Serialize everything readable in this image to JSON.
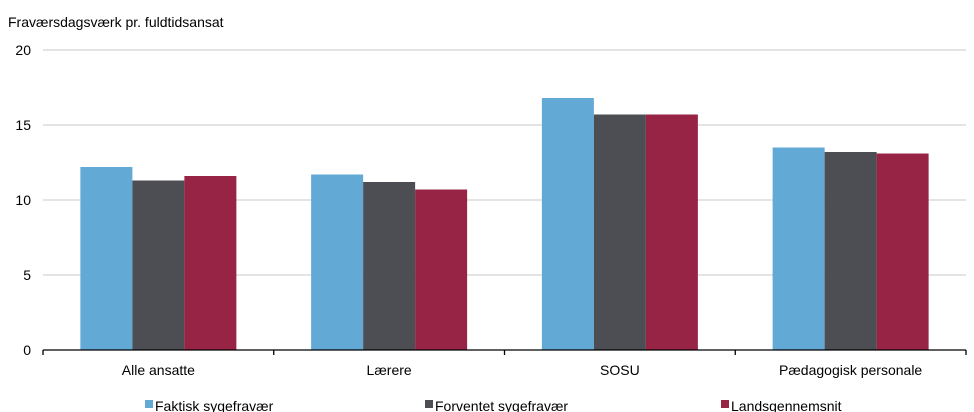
{
  "chart_data": {
    "type": "bar",
    "ylabel": "Fraværsdagsværk pr. fuldtidsansat",
    "ylim": [
      0,
      20
    ],
    "yticks": [
      0,
      5,
      10,
      15,
      20
    ],
    "grid": true,
    "legend_position": "bottom",
    "categories": [
      "Alle ansatte",
      "Lærere",
      "SOSU",
      "Pædagogisk personale"
    ],
    "series": [
      {
        "name": "Faktisk sygefravær",
        "color": "#63a9d6",
        "values": [
          12.2,
          11.7,
          16.8,
          13.5
        ]
      },
      {
        "name": "Forventet sygefravær",
        "color": "#4d4e53",
        "values": [
          11.3,
          11.2,
          15.7,
          13.2
        ]
      },
      {
        "name": "Landsgennemsnit",
        "color": "#972444",
        "values": [
          11.6,
          10.7,
          15.7,
          13.1
        ]
      }
    ]
  }
}
